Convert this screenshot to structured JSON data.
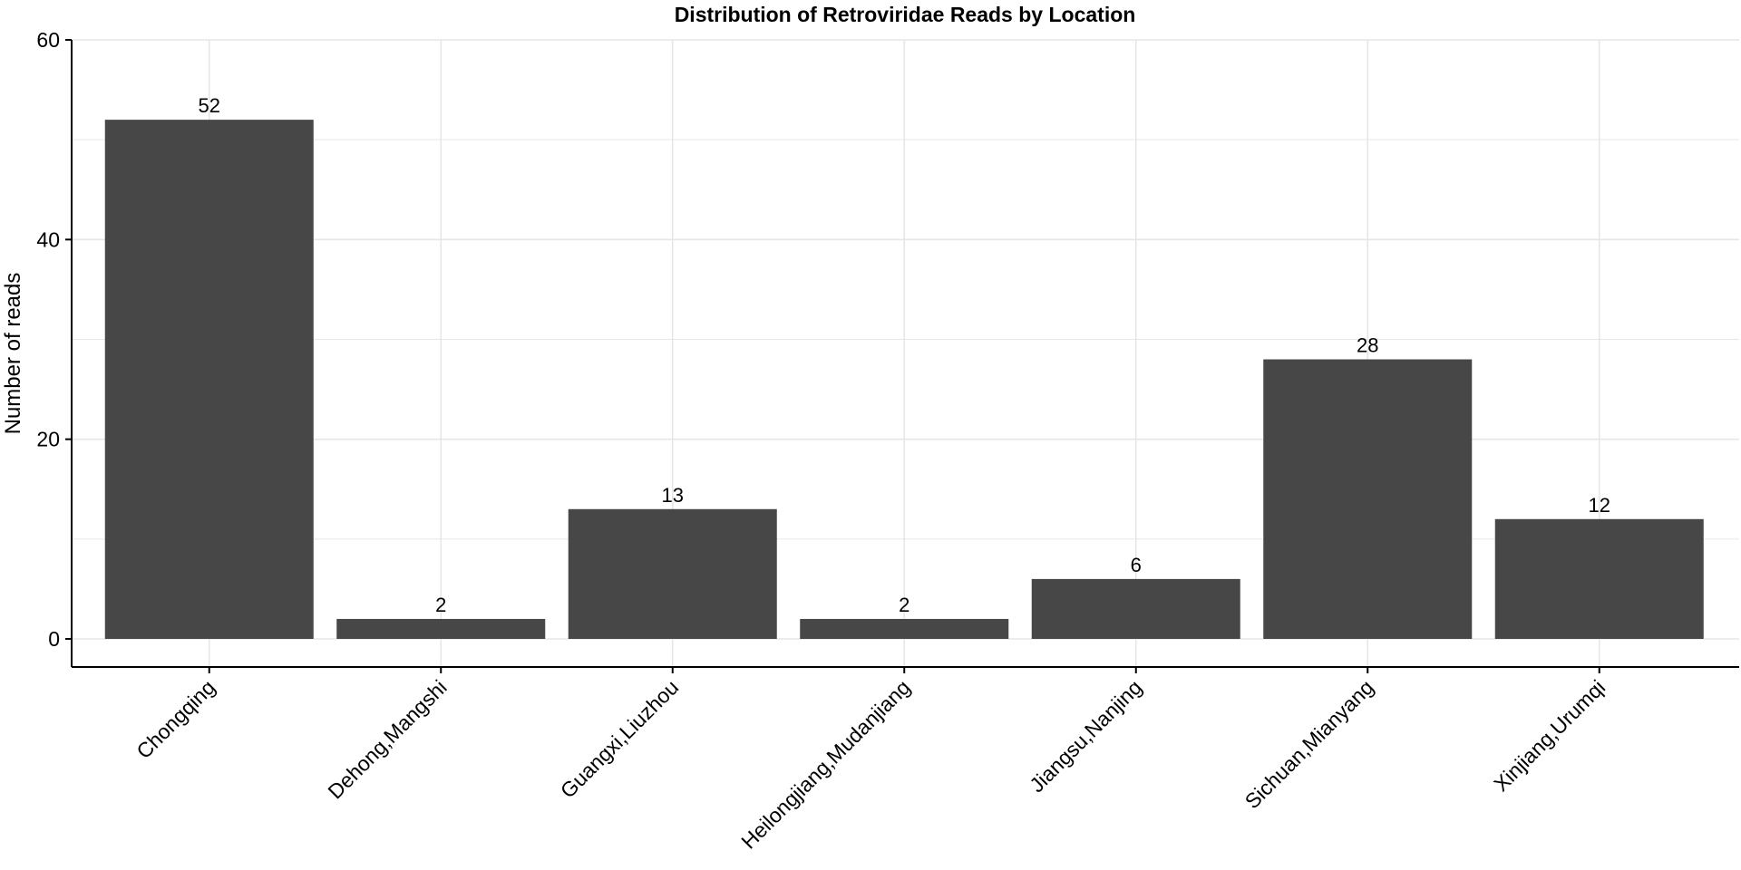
{
  "chart_data": {
    "type": "bar",
    "title": "Distribution of Retroviridae Reads by Location",
    "xlabel": "",
    "ylabel": "Number of reads",
    "categories": [
      "Chongqing",
      "Dehong,Mangshi",
      "Guangxi,Liuzhou",
      "Heilongjiang,Mudanjiang",
      "Jiangsu,Nanjing",
      "Sichuan,Mianyang",
      "Xinjiang,Urumqi"
    ],
    "values": [
      52,
      2,
      13,
      2,
      6,
      28,
      12
    ],
    "data_labels": [
      "52",
      "2",
      "13",
      "2",
      "6",
      "28",
      "12"
    ],
    "ylim": [
      0,
      60
    ],
    "yticks": [
      0,
      20,
      40,
      60
    ],
    "ytick_labels": [
      "0",
      "20",
      "40",
      "60"
    ],
    "grid": true,
    "legend": "none",
    "colors": {
      "bar": "#474747",
      "grid": "#e6e6e6",
      "axis": "#000000"
    }
  }
}
